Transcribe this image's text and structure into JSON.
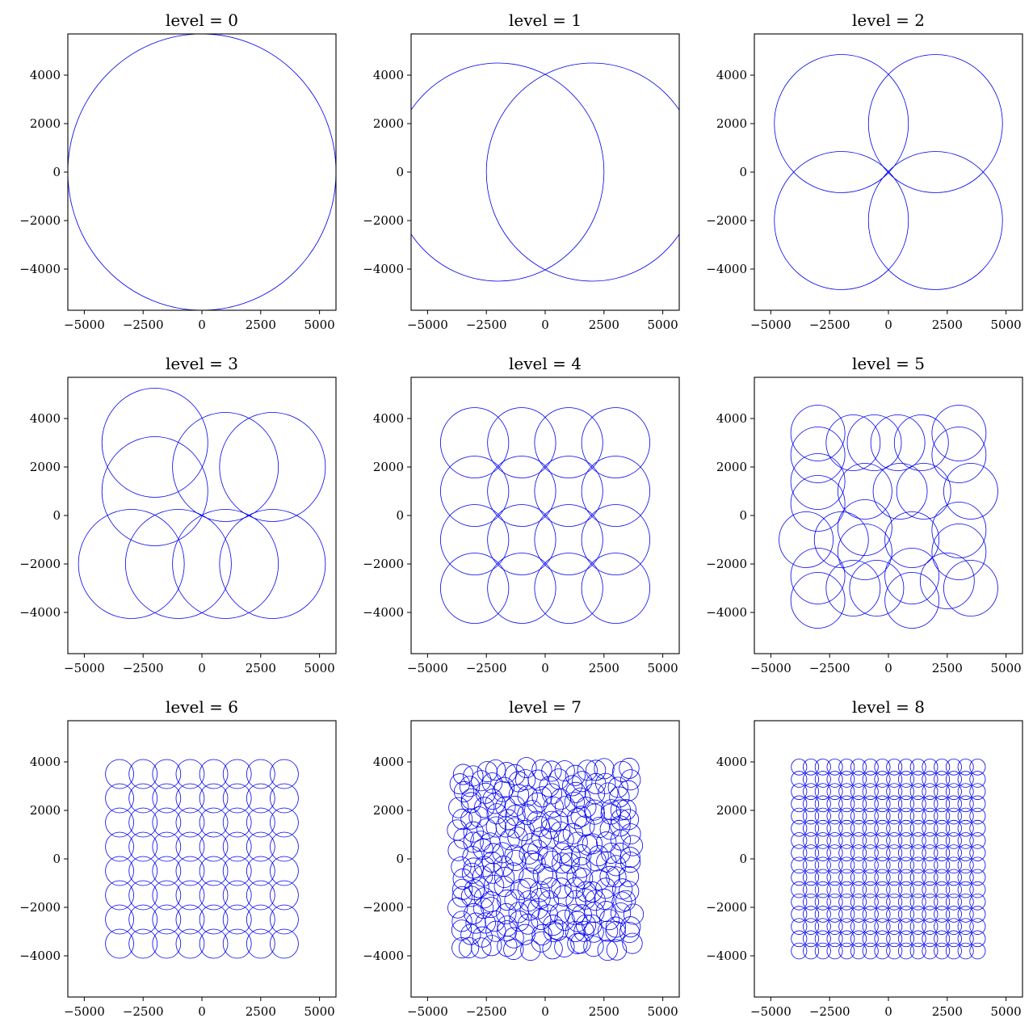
{
  "chart_data": {
    "type": "scatter",
    "mark": "circle-outline",
    "color": "#0000ee",
    "layout": "3x3 grid",
    "xlim": [
      -5700,
      5700
    ],
    "ylim": [
      -5700,
      5700
    ],
    "xticks": [
      -5000,
      -2500,
      0,
      2500,
      5000
    ],
    "yticks": [
      -4000,
      -2000,
      0,
      2000,
      4000
    ],
    "xtick_labels": [
      "−5000",
      "−2500",
      "0",
      "2500",
      "5000"
    ],
    "ytick_labels": [
      "−4000",
      "−2000",
      "0",
      "2000",
      "4000"
    ],
    "panels": [
      {
        "title": "level = 0",
        "circles": [
          [
            0,
            0,
            5700
          ]
        ]
      },
      {
        "title": "level = 1",
        "circles": [
          [
            -2000,
            0,
            4500
          ],
          [
            2000,
            0,
            4500
          ]
        ]
      },
      {
        "title": "level = 2",
        "circles": [
          [
            -2000,
            2000,
            2850
          ],
          [
            2000,
            2000,
            2850
          ],
          [
            -2000,
            -2000,
            2850
          ],
          [
            2000,
            -2000,
            2850
          ]
        ]
      },
      {
        "title": "level = 3",
        "circles": [
          [
            -2000,
            3000,
            2250
          ],
          [
            1000,
            2000,
            2250
          ],
          [
            3000,
            2000,
            2250
          ],
          [
            -2000,
            1000,
            2250
          ],
          [
            -3000,
            -2000,
            2250
          ],
          [
            -1000,
            -2000,
            2250
          ],
          [
            1000,
            -2000,
            2250
          ],
          [
            3000,
            -2000,
            2250
          ]
        ]
      },
      {
        "title": "level = 4",
        "grid": {
          "n": 4,
          "min": -3000,
          "step": 2000,
          "r": 1450
        }
      },
      {
        "title": "level = 5",
        "circles": [
          [
            -3000,
            3400,
            1150
          ],
          [
            -3000,
            2500,
            1150
          ],
          [
            -3000,
            1400,
            1150
          ],
          [
            -3000,
            500,
            1150
          ],
          [
            -1500,
            3000,
            1150
          ],
          [
            -600,
            3000,
            1150
          ],
          [
            400,
            3000,
            1150
          ],
          [
            1400,
            3000,
            1150
          ],
          [
            3000,
            3400,
            1150
          ],
          [
            3000,
            2500,
            1150
          ],
          [
            3500,
            1000,
            1150
          ],
          [
            1500,
            1000,
            1150
          ],
          [
            500,
            1000,
            1150
          ],
          [
            -1000,
            1000,
            1150
          ],
          [
            -1000,
            -500,
            1150
          ],
          [
            -3500,
            -1000,
            1150
          ],
          [
            -2000,
            -1000,
            1150
          ],
          [
            -1000,
            -1500,
            1150
          ],
          [
            1000,
            -1000,
            1150
          ],
          [
            3000,
            -600,
            1150
          ],
          [
            3000,
            -1500,
            1150
          ],
          [
            -3000,
            -2500,
            1150
          ],
          [
            -3000,
            -3500,
            1150
          ],
          [
            -1500,
            -3000,
            1150
          ],
          [
            -500,
            -3000,
            1150
          ],
          [
            1000,
            -2500,
            1150
          ],
          [
            1000,
            -3500,
            1150
          ],
          [
            2500,
            -2700,
            1150
          ],
          [
            3500,
            -3000,
            1150
          ]
        ]
      },
      {
        "title": "level = 6",
        "grid": {
          "n": 8,
          "min": -3500,
          "step": 1000,
          "r": 600
        }
      },
      {
        "title": "level = 7",
        "grid": {
          "n": 16,
          "min": -3600,
          "step": 480,
          "r": 420,
          "jitter": 180
        }
      },
      {
        "title": "level = 8",
        "grid": {
          "n": 16,
          "min": -3800,
          "step": 506,
          "r": 330
        }
      }
    ]
  }
}
